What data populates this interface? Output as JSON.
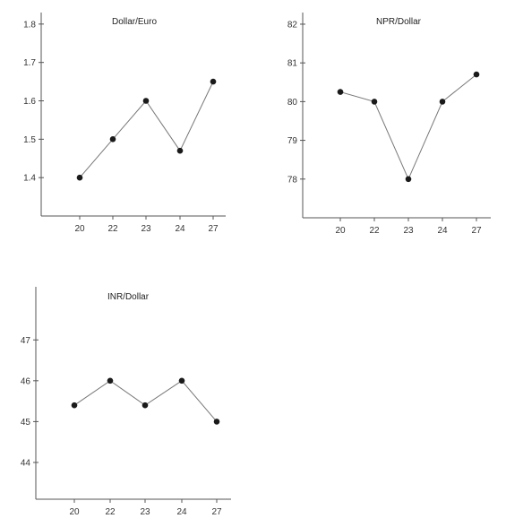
{
  "chart_data": [
    {
      "type": "line",
      "title": "Dollar/Euro",
      "categories": [
        "20",
        "22",
        "23",
        "24",
        "27"
      ],
      "values": [
        1.4,
        1.5,
        1.6,
        1.47,
        1.65
      ],
      "y_ticks": [
        1.4,
        1.5,
        1.6,
        1.7,
        1.8
      ],
      "y_tick_labels": [
        "1.4",
        "1.5",
        "1.6",
        "1.7",
        "1.8"
      ],
      "ylim": [
        1.3,
        1.83
      ],
      "xlabel": "",
      "ylabel": "",
      "grid": false
    },
    {
      "type": "line",
      "title": "NPR/Dollar",
      "categories": [
        "20",
        "22",
        "23",
        "24",
        "27"
      ],
      "values": [
        80.25,
        80.0,
        78.0,
        80.0,
        80.7
      ],
      "y_ticks": [
        78,
        79,
        80,
        81,
        82
      ],
      "y_tick_labels": [
        "78",
        "79",
        "80",
        "81",
        "82"
      ],
      "ylim": [
        77.0,
        82.3
      ],
      "xlabel": "",
      "ylabel": "",
      "grid": false
    },
    {
      "type": "line",
      "title": "INR/Dollar",
      "categories": [
        "20",
        "22",
        "23",
        "24",
        "27"
      ],
      "values": [
        45.4,
        46.0,
        45.4,
        46.0,
        45.0
      ],
      "y_ticks": [
        44,
        45,
        46,
        47
      ],
      "y_tick_labels": [
        "44",
        "45",
        "46",
        "47"
      ],
      "ylim": [
        43.1,
        48.3
      ],
      "xlabel": "",
      "ylabel": "",
      "grid": false
    }
  ]
}
